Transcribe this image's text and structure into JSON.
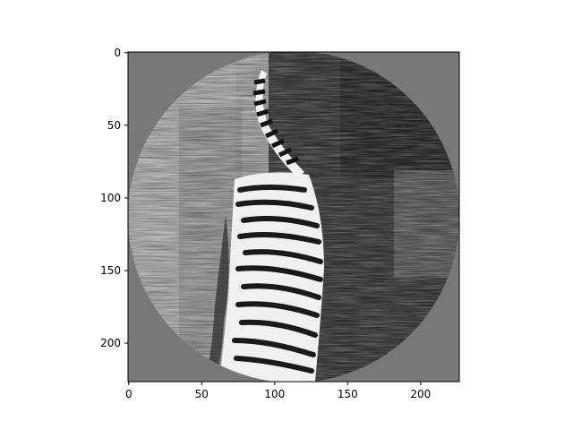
{
  "chart_data": {
    "type": "heatmap",
    "description_kind": "grayscale image (imshow) of a tiger inside a circular mask",
    "x_ticks": [
      "0",
      "50",
      "100",
      "150",
      "200"
    ],
    "y_ticks": [
      "0",
      "50",
      "100",
      "150",
      "200"
    ],
    "x_tick_values": [
      0,
      50,
      100,
      150,
      200
    ],
    "y_tick_values": [
      0,
      50,
      100,
      150,
      200
    ],
    "xlim": [
      -0.5,
      226.5
    ],
    "ylim": [
      226.5,
      -0.5
    ],
    "y_axis_inverted": true,
    "image_size": [
      227,
      227
    ],
    "mask": "circle",
    "mask_fill_gray": "#787878",
    "colormap": "gray",
    "grid": false,
    "title": "",
    "xlabel": "",
    "ylabel": ""
  }
}
